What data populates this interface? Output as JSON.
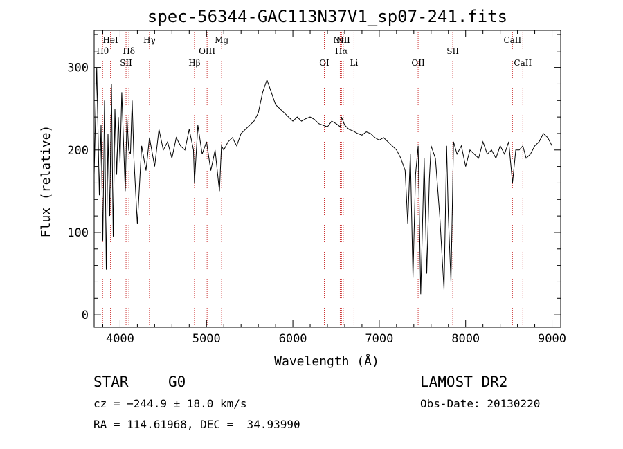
{
  "chart_data": {
    "type": "line",
    "title": "spec-56344-GAC113N37V1_sp07-241.fits",
    "xlabel": "Wavelength (Å)",
    "ylabel": "Flux (relative)",
    "xlim": [
      3700,
      9100
    ],
    "ylim": [
      -15,
      345
    ],
    "xticks": [
      4000,
      5000,
      6000,
      7000,
      8000,
      9000
    ],
    "yticks": [
      0,
      100,
      200,
      300
    ],
    "grid": false,
    "line_color": "#000000",
    "marker_color": "#cc3333",
    "series": [
      {
        "x": [
          3700,
          3730,
          3760,
          3780,
          3800,
          3820,
          3840,
          3860,
          3880,
          3900,
          3920,
          3940,
          3960,
          3980,
          4000,
          4020,
          4040,
          4060,
          4080,
          4100,
          4120,
          4140,
          4160,
          4200,
          4250,
          4300,
          4340,
          4400,
          4450,
          4500,
          4550,
          4600,
          4650,
          4700,
          4750,
          4800,
          4850,
          4861,
          4900,
          4950,
          5000,
          5050,
          5100,
          5150,
          5173,
          5200,
          5250,
          5300,
          5350,
          5400,
          5450,
          5500,
          5550,
          5600,
          5650,
          5700,
          5750,
          5800,
          5850,
          5900,
          5950,
          6000,
          6050,
          6100,
          6150,
          6200,
          6250,
          6300,
          6350,
          6400,
          6450,
          6500,
          6550,
          6563,
          6600,
          6650,
          6700,
          6750,
          6800,
          6850,
          6900,
          6950,
          7000,
          7050,
          7100,
          7150,
          7200,
          7250,
          7300,
          7330,
          7360,
          7390,
          7420,
          7450,
          7480,
          7520,
          7550,
          7580,
          7600,
          7650,
          7700,
          7750,
          7780,
          7800,
          7830,
          7860,
          7900,
          7950,
          8000,
          8050,
          8100,
          8150,
          8200,
          8250,
          8300,
          8350,
          8400,
          8450,
          8498,
          8542,
          8580,
          8620,
          8662,
          8700,
          8750,
          8800,
          8850,
          8900,
          8950,
          9000
        ],
        "y": [
          170,
          300,
          145,
          230,
          90,
          260,
          55,
          220,
          120,
          280,
          95,
          250,
          170,
          240,
          185,
          270,
          210,
          150,
          240,
          200,
          195,
          260,
          190,
          110,
          205,
          175,
          215,
          180,
          225,
          200,
          210,
          190,
          215,
          205,
          200,
          225,
          200,
          160,
          230,
          195,
          210,
          175,
          200,
          150,
          205,
          200,
          210,
          215,
          205,
          220,
          225,
          230,
          235,
          245,
          270,
          285,
          270,
          255,
          250,
          245,
          240,
          235,
          240,
          235,
          238,
          240,
          237,
          232,
          230,
          228,
          235,
          232,
          228,
          240,
          230,
          225,
          223,
          220,
          218,
          222,
          220,
          215,
          212,
          215,
          210,
          205,
          200,
          190,
          175,
          110,
          195,
          45,
          170,
          205,
          25,
          190,
          50,
          165,
          205,
          190,
          120,
          30,
          205,
          120,
          40,
          210,
          195,
          205,
          180,
          200,
          195,
          190,
          210,
          195,
          200,
          190,
          205,
          195,
          210,
          160,
          200,
          200,
          205,
          190,
          195,
          205,
          210,
          220,
          215,
          205
        ]
      }
    ],
    "line_markers": [
      {
        "label": "Hθ",
        "x": 3798,
        "row": 2
      },
      {
        "label": "HeI",
        "x": 3889,
        "row": 1
      },
      {
        "label": "SII",
        "x": 4069,
        "row": 3
      },
      {
        "label": "Hδ",
        "x": 4102,
        "row": 2
      },
      {
        "label": "Hγ",
        "x": 4340,
        "row": 1
      },
      {
        "label": "Hβ",
        "x": 4861,
        "row": 3
      },
      {
        "label": "OIII",
        "x": 5007,
        "row": 2
      },
      {
        "label": "Mg",
        "x": 5175,
        "row": 1
      },
      {
        "label": "OI",
        "x": 6364,
        "row": 3
      },
      {
        "label": "NII",
        "x": 6548,
        "row": 1
      },
      {
        "label": "Hα",
        "x": 6563,
        "row": 2
      },
      {
        "label": "NII",
        "x": 6583,
        "row": 1
      },
      {
        "label": "Li",
        "x": 6708,
        "row": 3
      },
      {
        "label": "OII",
        "x": 7450,
        "row": 3
      },
      {
        "label": "SII",
        "x": 7851,
        "row": 2
      },
      {
        "label": "CaII",
        "x": 8542,
        "row": 1
      },
      {
        "label": "CaII",
        "x": 8662,
        "row": 3
      }
    ]
  },
  "info": {
    "object_class": "STAR",
    "subclass": "G0",
    "survey": "LAMOST DR2",
    "cz": "cz = −244.9 ± 18.0 km/s",
    "obs_date": "Obs-Date: 20130220",
    "coords": "RA = 114.61968, DEC =  34.93990"
  }
}
